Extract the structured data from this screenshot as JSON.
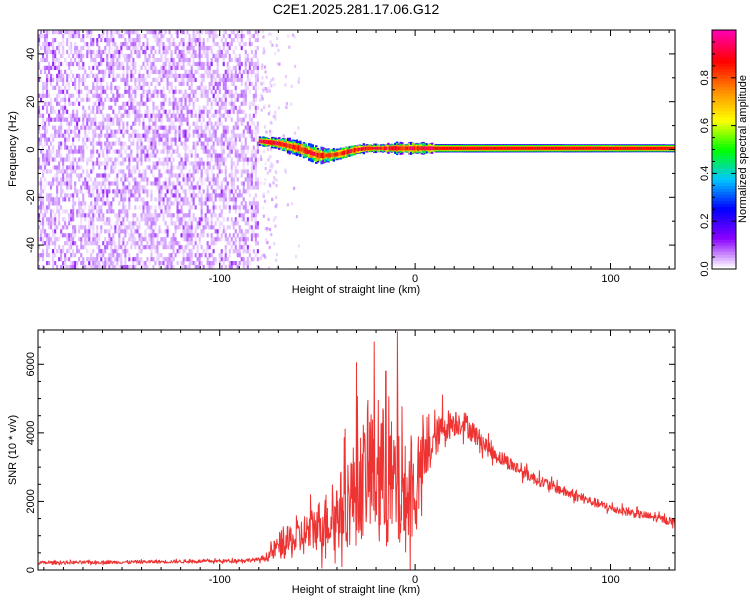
{
  "page": {
    "title": "C2E1.2025.281.17.06.G12"
  },
  "chart_data": [
    {
      "type": "heatmap",
      "title": "C2E1.2025.281.17.06.G12",
      "xlabel": "Height of straight line (km)",
      "ylabel": "Frequency (Hz)",
      "xlim": [
        -193,
        133
      ],
      "ylim": [
        -50,
        50
      ],
      "xticks": [
        -100,
        0,
        100
      ],
      "yticks": [
        -40,
        -20,
        0,
        20,
        40
      ],
      "colorbar": {
        "label": "Normalized spectral amplitude",
        "range": [
          0.0,
          1.0
        ],
        "ticks": [
          0.0,
          0.2,
          0.4,
          0.6,
          0.8
        ],
        "tick_labels": [
          "0.0",
          "0.2",
          "0.4",
          "0.6",
          "0.8"
        ],
        "colormap": [
          "#ffffff",
          "#8a00ff",
          "#0000ff",
          "#00c8ff",
          "#00ff00",
          "#ffff00",
          "#ff8c00",
          "#ff0000",
          "#ff00aa"
        ]
      },
      "regions": [
        {
          "name": "noise",
          "x_from": -193,
          "x_to": -80,
          "amplitude": 0.12
        },
        {
          "name": "sparse_noise",
          "x_from": -80,
          "x_to": -60,
          "amplitude": 0.05
        },
        {
          "name": "signal_track",
          "x_from": -80,
          "x_to": 133,
          "amplitude": 1.0
        }
      ],
      "signal_track": {
        "x": [
          -80,
          -70,
          -60,
          -55,
          -50,
          -45,
          -40,
          -35,
          -30,
          -25,
          -20,
          -15,
          -10,
          -5,
          0,
          5,
          10,
          133
        ],
        "freq": [
          3.5,
          2.5,
          0.5,
          -1.0,
          -2.5,
          -2.5,
          -2.0,
          -1.0,
          0.0,
          0.5,
          0.5,
          0.5,
          0.5,
          0.5,
          0.5,
          0.5,
          0.5,
          0.5
        ],
        "halfwidth": [
          1.6,
          2.2,
          2.8,
          3.0,
          2.8,
          2.4,
          2.2,
          2.0,
          2.0,
          1.6,
          1.4,
          1.6,
          2.0,
          1.8,
          2.2,
          2.0,
          1.5,
          1.4
        ]
      }
    },
    {
      "type": "line",
      "xlabel": "Height of straight line (km)",
      "ylabel": "SNR (10 * v/v)",
      "xlim": [
        -193,
        133
      ],
      "ylim": [
        0,
        7000
      ],
      "xticks": [
        -100,
        0,
        100
      ],
      "yticks": [
        0,
        2000,
        4000,
        6000
      ],
      "color": "#ee3333",
      "series": [
        {
          "name": "SNR",
          "envelope_x": [
            -193,
            -150,
            -100,
            -80,
            -75,
            -70,
            -60,
            -50,
            -40,
            -35,
            -30,
            -25,
            -20,
            -15,
            -10,
            -5,
            0,
            5,
            10,
            15,
            20,
            25,
            30,
            40,
            60,
            80,
            100,
            133
          ],
          "envelope_mean": [
            210,
            230,
            260,
            300,
            400,
            700,
            900,
            1300,
            1600,
            2000,
            2300,
            2800,
            3000,
            2600,
            2300,
            2100,
            2300,
            3200,
            3800,
            4200,
            4300,
            4300,
            4000,
            3400,
            2700,
            2200,
            1800,
            1400
          ],
          "envelope_spread": [
            60,
            60,
            60,
            70,
            180,
            500,
            700,
            900,
            1300,
            1700,
            2000,
            2200,
            2800,
            2600,
            2400,
            2000,
            1600,
            1100,
            700,
            600,
            500,
            450,
            400,
            280,
            220,
            180,
            160,
            140
          ],
          "peaks": [
            {
              "x": -9,
              "y": 6950
            },
            {
              "x": -21,
              "y": 6650
            },
            {
              "x": -30,
              "y": 6050
            },
            {
              "x": -15,
              "y": 5800
            },
            {
              "x": 14,
              "y": 5100
            }
          ]
        }
      ]
    }
  ]
}
